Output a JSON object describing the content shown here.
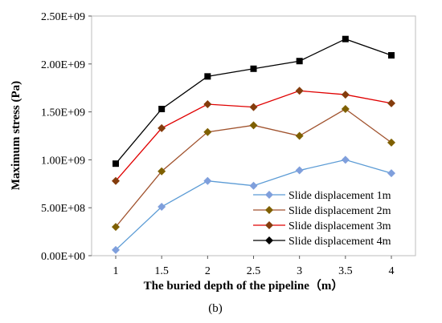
{
  "chart_data": {
    "type": "line",
    "title": "",
    "xlabel": "The buried depth of the pipeline（m）",
    "ylabel": "Maximum stress (Pa)",
    "x": [
      1,
      1.5,
      2,
      2.5,
      3,
      3.5,
      4
    ],
    "x_tick_labels": [
      "1",
      "1.5",
      "2",
      "2.5",
      "3",
      "3.5",
      "4"
    ],
    "ylim": [
      0,
      2500000000
    ],
    "y_ticks": [
      0,
      500000000,
      1000000000,
      1500000000,
      2000000000,
      2500000000
    ],
    "y_tick_labels": [
      "0.00E+00",
      "5.00E+08",
      "1.00E+09",
      "1.50E+09",
      "2.00E+09",
      "2.50E+09"
    ],
    "grid": false,
    "legend_position": "bottom-right",
    "series": [
      {
        "name": "Slide displacement 1m",
        "color": "#5b9bd5",
        "marker_color": "#7f9fdc",
        "values": [
          60000000,
          510000000,
          780000000,
          730000000,
          890000000,
          1000000000,
          860000000
        ]
      },
      {
        "name": "Slide displacement 2m",
        "color": "#a0522d",
        "marker_color": "#7f6000",
        "values": [
          300000000,
          880000000,
          1290000000,
          1360000000,
          1250000000,
          1530000000,
          1180000000
        ]
      },
      {
        "name": "Slide displacement 3m",
        "color": "#e00000",
        "marker_color": "#843c0c",
        "values": [
          780000000,
          1330000000,
          1580000000,
          1550000000,
          1720000000,
          1680000000,
          1590000000
        ]
      },
      {
        "name": "Slide displacement 4m",
        "color": "#000000",
        "marker_color": "#000000",
        "values": [
          960000000,
          1530000000,
          1870000000,
          1950000000,
          2030000000,
          2260000000,
          2090000000
        ]
      }
    ]
  },
  "caption": {
    "text": "(b)"
  }
}
